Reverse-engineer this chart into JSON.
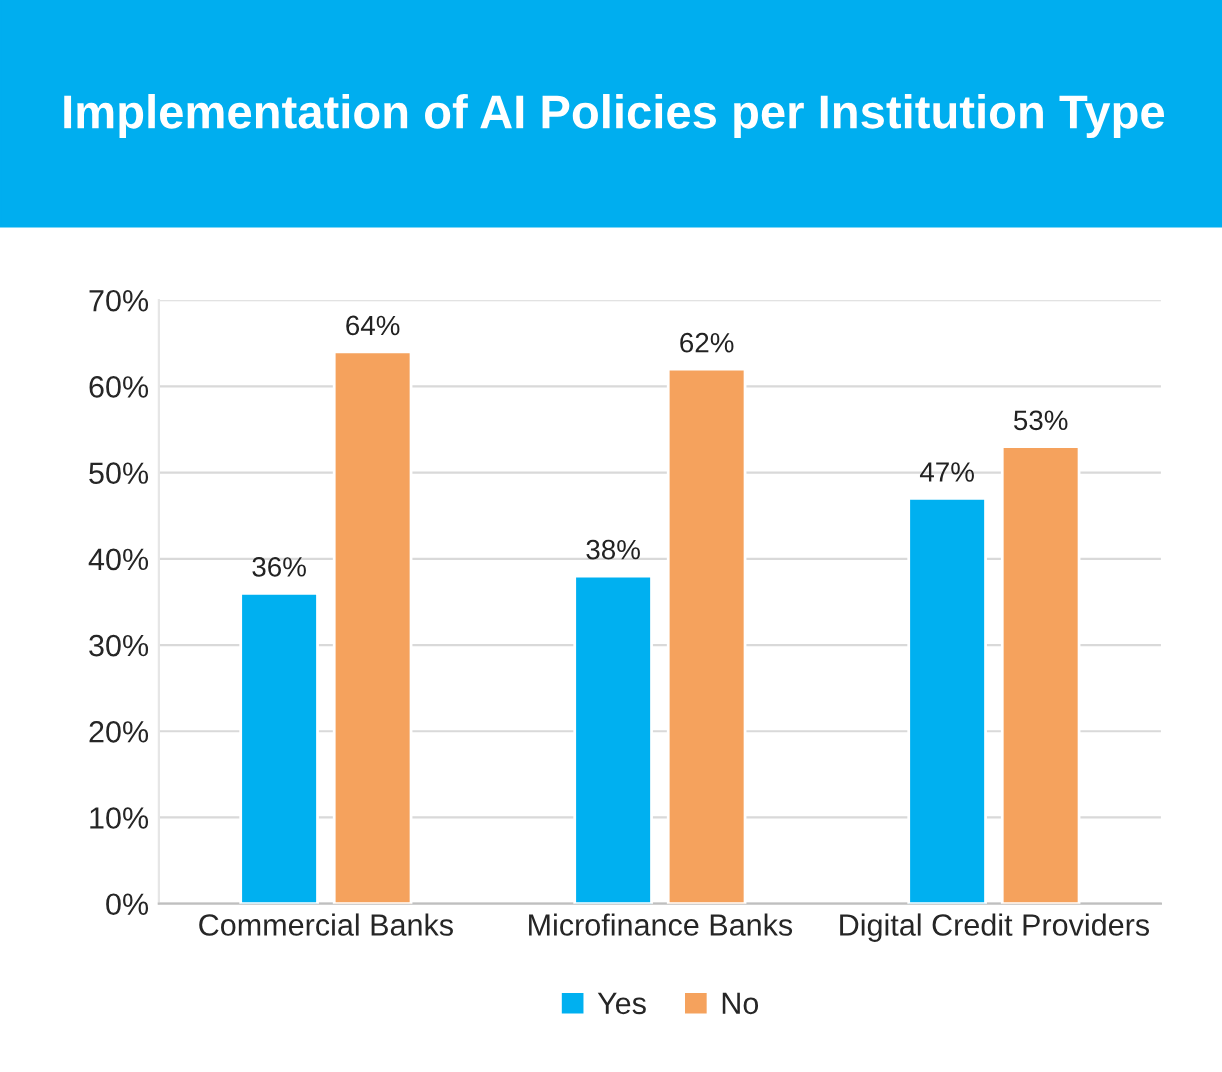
{
  "chart_data": {
    "type": "bar",
    "title": "Implementation of AI Policies per Institution Type",
    "categories": [
      "Commercial Banks",
      "Microfinance Banks",
      "Digital Credit Providers"
    ],
    "series": [
      {
        "name": "Yes",
        "color": "#00b0f0",
        "values": [
          36,
          38,
          47
        ],
        "value_labels": [
          "36%",
          "38%",
          "47%"
        ]
      },
      {
        "name": "No",
        "color": "#f5a25d",
        "values": [
          64,
          62,
          53
        ],
        "value_labels": [
          "64%",
          "62%",
          "53%"
        ]
      }
    ],
    "ylim": [
      0,
      70
    ],
    "yticks": [
      {
        "value": 0,
        "label": "0%"
      },
      {
        "value": 10,
        "label": "10%"
      },
      {
        "value": 20,
        "label": "20%"
      },
      {
        "value": 30,
        "label": "30%"
      },
      {
        "value": 40,
        "label": "40%"
      },
      {
        "value": 50,
        "label": "50%"
      },
      {
        "value": 60,
        "label": "60%"
      },
      {
        "value": 70,
        "label": "70%"
      }
    ],
    "grid": "y",
    "legend": "bottom"
  }
}
